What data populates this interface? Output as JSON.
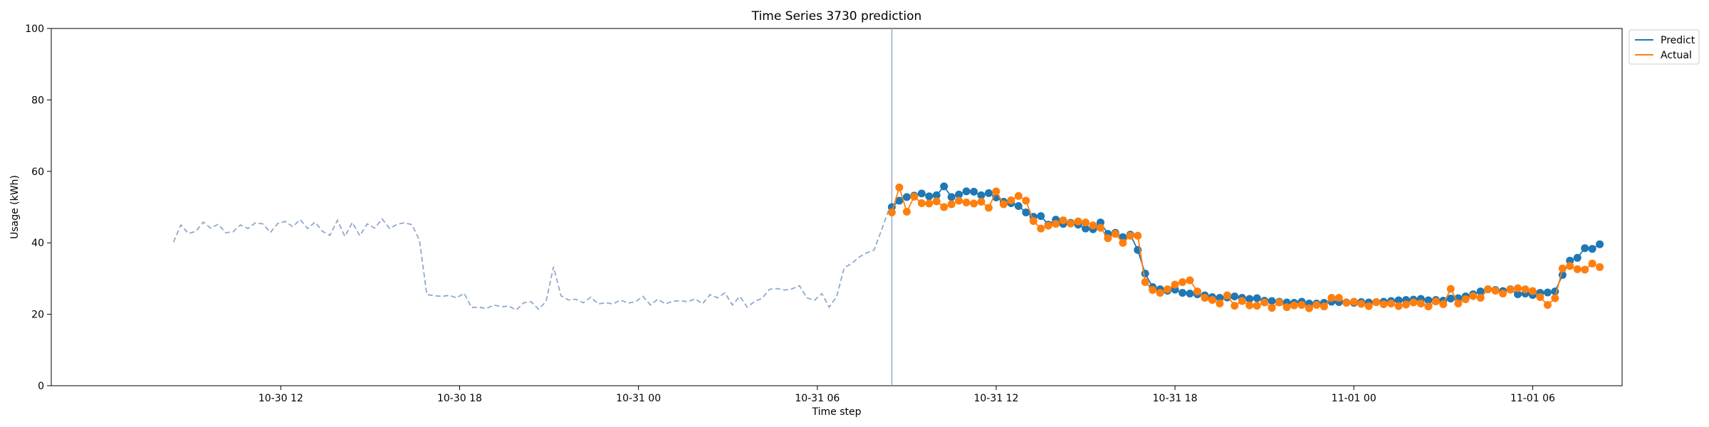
{
  "chart_data": {
    "type": "line",
    "title": "Time Series 3730 prediction",
    "xlabel": "Time step",
    "ylabel": "Usage (kWh)",
    "ylim": [
      0,
      100
    ],
    "yticks": [
      0,
      20,
      40,
      60,
      80,
      100
    ],
    "xlim": [
      -1.7,
      51.0
    ],
    "xticks": [
      {
        "x": 6,
        "label": "10-30 12"
      },
      {
        "x": 12,
        "label": "10-30 18"
      },
      {
        "x": 18,
        "label": "10-31 00"
      },
      {
        "x": 24,
        "label": "10-31 06"
      },
      {
        "x": 30,
        "label": "10-31 12"
      },
      {
        "x": 36,
        "label": "10-31 18"
      },
      {
        "x": 42,
        "label": "11-01 00"
      },
      {
        "x": 48,
        "label": "11-01 06"
      }
    ],
    "x_unit": "hours since 10-30 06:00",
    "step": 0.25,
    "forecast_start": 26.5,
    "legend": {
      "position": "top-right",
      "entries": [
        "Predict",
        "Actual"
      ]
    },
    "colors": {
      "history": "#8fa9cc",
      "predict": "#1f77b4",
      "actual": "#ff7f0e",
      "vline": "#8fa9cc"
    },
    "history": {
      "x_start": 2.4,
      "values": [
        40.2,
        45.0,
        42.6,
        43.2,
        45.8,
        44.1,
        45.2,
        42.8,
        43.1,
        45.0,
        44.0,
        45.6,
        45.3,
        42.9,
        45.4,
        46.0,
        44.5,
        46.5,
        44.0,
        45.8,
        43.2,
        42.1,
        46.3,
        41.8,
        45.7,
        42.0,
        45.3,
        44.1,
        46.7,
        44.0,
        45.2,
        45.6,
        45.1,
        40.8,
        25.5,
        25.2,
        25.0,
        25.3,
        24.6,
        25.9,
        21.9,
        22.0,
        21.6,
        22.6,
        22.1,
        22.3,
        21.2,
        23.2,
        23.5,
        21.4,
        23.6,
        33.3,
        25.2,
        24.0,
        24.2,
        23.2,
        24.8,
        22.9,
        23.2,
        22.9,
        24.0,
        23.1,
        23.5,
        25.0,
        22.6,
        24.2,
        22.9,
        23.6,
        23.8,
        23.5,
        24.3,
        22.9,
        25.5,
        24.6,
        26.0,
        22.6,
        25.0,
        22.0,
        23.6,
        24.5,
        27.0,
        27.2,
        26.8,
        27.1,
        28.0,
        24.6,
        23.9,
        25.8,
        22.0,
        25.0,
        33.0,
        34.2,
        36.0,
        37.2,
        37.9,
        43.5,
        49.3,
        51.0,
        51.0
      ]
    },
    "series": [
      {
        "name": "Predict",
        "x_start": 26.5,
        "values": [
          50.0,
          51.8,
          52.8,
          53.2,
          53.8,
          53.0,
          53.3,
          55.8,
          52.8,
          53.5,
          54.4,
          54.3,
          53.3,
          53.9,
          52.7,
          51.5,
          51.1,
          50.3,
          48.5,
          47.3,
          47.5,
          45.1,
          46.5,
          45.3,
          45.6,
          45.1,
          44.0,
          43.8,
          45.7,
          42.5,
          42.8,
          41.6,
          42.3,
          38.0,
          31.4,
          27.6,
          27.0,
          26.6,
          26.9,
          26.0,
          25.8,
          25.6,
          25.3,
          24.8,
          24.6,
          24.7,
          25.0,
          24.6,
          24.3,
          24.5,
          23.8,
          23.7,
          23.5,
          23.3,
          23.2,
          23.5,
          23.0,
          23.0,
          23.2,
          23.5,
          23.4,
          23.3,
          23.2,
          23.4,
          23.3,
          23.4,
          23.5,
          23.7,
          23.9,
          24.0,
          24.1,
          24.3,
          23.9,
          24.0,
          23.8,
          24.4,
          24.5,
          25.0,
          25.6,
          26.4,
          27.0,
          26.8,
          26.5,
          27.0,
          25.6,
          25.8,
          25.4,
          26.0,
          26.1,
          26.4,
          31.0,
          35.0,
          35.8,
          38.5,
          38.3,
          39.6
        ]
      },
      {
        "name": "Actual",
        "x_start": 26.5,
        "values": [
          48.5,
          55.5,
          48.7,
          52.9,
          51.1,
          51.0,
          51.6,
          50.0,
          50.8,
          51.8,
          51.3,
          51.0,
          51.5,
          49.8,
          54.4,
          50.8,
          51.9,
          53.1,
          51.8,
          46.1,
          44.0,
          44.8,
          45.3,
          46.3,
          45.4,
          46.0,
          45.7,
          44.9,
          44.2,
          41.3,
          42.5,
          40.0,
          42.0,
          42.0,
          29.0,
          26.8,
          26.0,
          27.0,
          28.3,
          29.0,
          29.5,
          26.4,
          24.6,
          24.0,
          23.0,
          25.3,
          22.4,
          23.7,
          22.5,
          22.4,
          23.3,
          21.8,
          23.3,
          22.0,
          22.5,
          22.6,
          21.7,
          22.6,
          22.2,
          24.6,
          24.6,
          23.2,
          23.5,
          22.9,
          22.3,
          23.4,
          22.8,
          23.0,
          22.3,
          22.7,
          23.3,
          23.0,
          22.2,
          23.6,
          22.8,
          27.1,
          23.0,
          24.2,
          25.1,
          24.6,
          27.0,
          26.6,
          25.8,
          26.9,
          27.3,
          27.0,
          26.5,
          24.8,
          22.6,
          24.5,
          32.8,
          33.5,
          32.6,
          32.5,
          34.2,
          33.2
        ]
      }
    ]
  }
}
